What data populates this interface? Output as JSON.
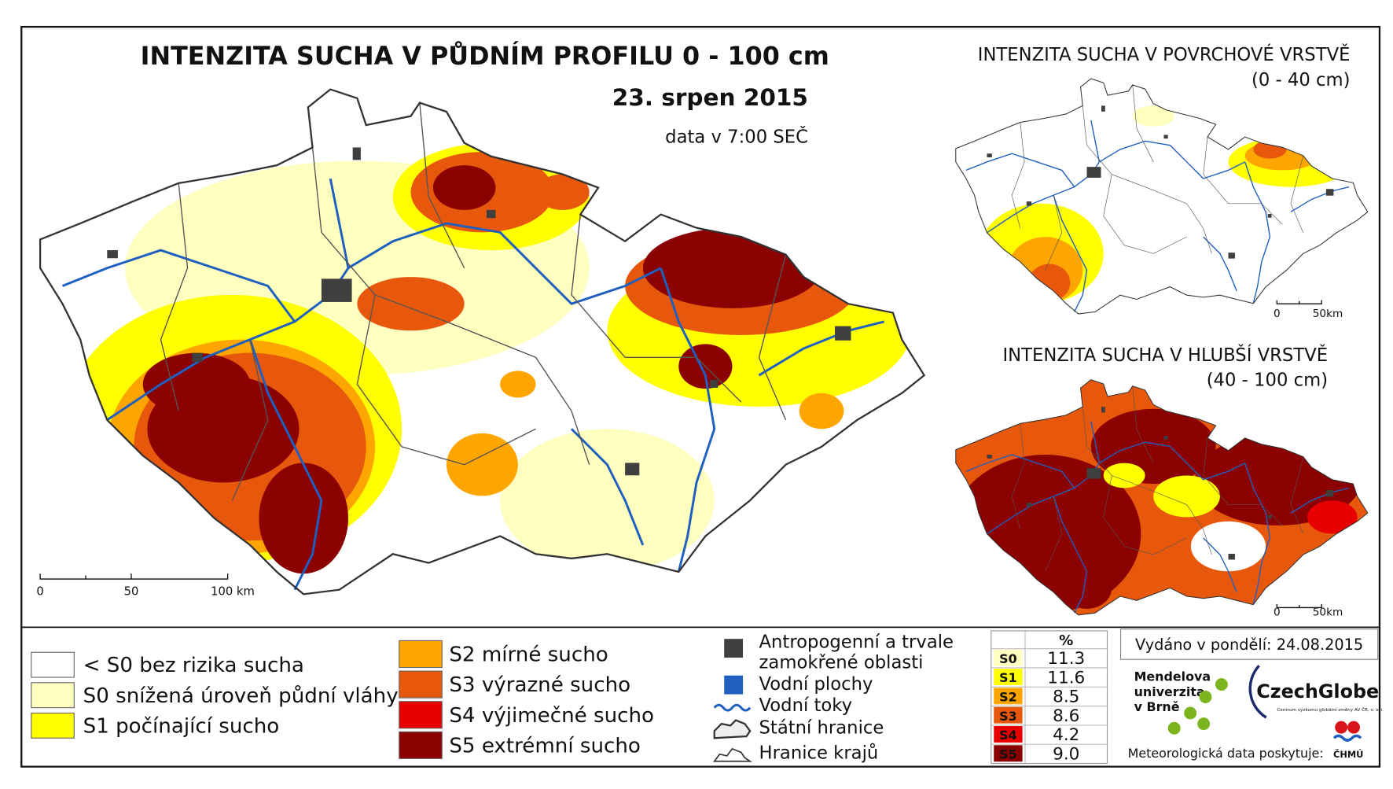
{
  "header": {
    "title": "INTENZITA SUCHA V PŮDNÍM PROFILU 0 - 100 cm",
    "date": "23. srpen 2015",
    "data_time": "data v 7:00 SEČ"
  },
  "main_map": {
    "scale_labels": [
      "0",
      "50",
      "100 km"
    ]
  },
  "insets": [
    {
      "title": "INTENZITA SUCHA V POVRCHOVÉ VRSTVĚ",
      "depth": "(0 - 40 cm)",
      "scale_labels": [
        "0",
        "50km"
      ]
    },
    {
      "title": "INTENZITA SUCHA V HLUBŠÍ VRSTVĚ",
      "depth": "(40 - 100 cm)",
      "scale_labels": [
        "0",
        "50km"
      ]
    }
  ],
  "legend": {
    "categories": [
      {
        "label": "< S0 bez rizika sucha",
        "color": "#ffffff"
      },
      {
        "label": "S0 snížená úroveň půdní vláhy",
        "color": "#ffffc0"
      },
      {
        "label": "S1 počínající sucho",
        "color": "#ffff00"
      },
      {
        "label": "S2 mírné sucho",
        "color": "#ffa500"
      },
      {
        "label": "S3 výrazné sucho",
        "color": "#e8580c"
      },
      {
        "label": "S4 výjimečné sucho",
        "color": "#e80000"
      },
      {
        "label": "S5 extrémní sucho",
        "color": "#8b0000"
      }
    ],
    "features": [
      "Antropogenní a trvale",
      "zamokřené oblasti",
      "Vodní plochy",
      "Vodní toky",
      "Státní hranice",
      "Hranice krajů"
    ]
  },
  "table": {
    "header": "%",
    "rows": [
      [
        "S0",
        "11.3"
      ],
      [
        "S1",
        "11.6"
      ],
      [
        "S2",
        "8.5"
      ],
      [
        "S3",
        "8.6"
      ],
      [
        "S4",
        "4.2"
      ],
      [
        "S5",
        "9.0"
      ]
    ]
  },
  "footer": {
    "issued": "Vydáno v pondělí: 24.08.2015",
    "mendel": [
      "Mendelova",
      "univerzita",
      "v Brně"
    ],
    "czechglobe": "CzechGlobe",
    "czechglobe_sub": "Centrum výzkumu globální změny AV ČR, v. v. i.",
    "met": "Meteorologická data poskytuje:",
    "chmu": "ČHMÚ"
  }
}
